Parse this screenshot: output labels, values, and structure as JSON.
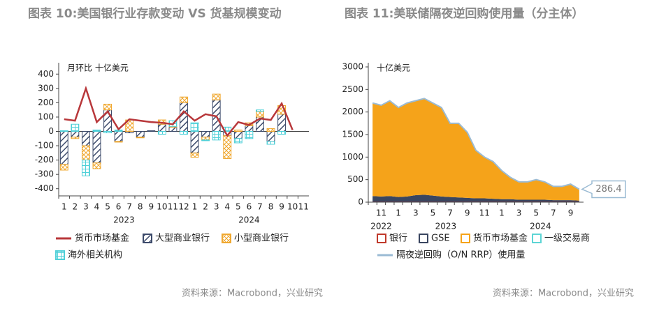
{
  "chart_data": [
    {
      "type": "bar",
      "title": "图表 10:美国银行业存款变动 VS 货基规模变动",
      "unit_label": "月环比 十亿美元",
      "categories": [
        "1",
        "2",
        "3",
        "4",
        "5",
        "6",
        "7",
        "8",
        "9",
        "10",
        "11",
        "12",
        "1",
        "2",
        "3",
        "4",
        "5",
        "6",
        "7",
        "8",
        "9",
        "10",
        "11"
      ],
      "groups": [
        {
          "label": "2023",
          "span": 12
        },
        {
          "label": "2024",
          "span": 11
        }
      ],
      "series": [
        {
          "name": "货币市场基金",
          "kind": "line",
          "color": "#b8373a",
          "values": [
            85,
            75,
            300,
            65,
            140,
            15,
            85,
            75,
            65,
            60,
            50,
            140,
            75,
            120,
            105,
            -30,
            65,
            45,
            90,
            80,
            195,
            10,
            null
          ]
        },
        {
          "name": "大型商业银行",
          "kind": "bar",
          "color": "#3d4b6b",
          "values": [
            -230,
            -40,
            -100,
            -220,
            150,
            -70,
            -10,
            -40,
            5,
            50,
            30,
            200,
            -150,
            -40,
            220,
            -30,
            -50,
            40,
            100,
            -70,
            120,
            null,
            null
          ]
        },
        {
          "name": "小型商业银行",
          "kind": "bar",
          "color": "#f0a830",
          "values": [
            -40,
            -10,
            -100,
            -40,
            40,
            -5,
            80,
            -5,
            0,
            30,
            5,
            40,
            -30,
            -20,
            40,
            -160,
            10,
            20,
            40,
            20,
            60,
            null,
            null
          ]
        },
        {
          "name": "海外相关机构",
          "kind": "bar",
          "color": "#4fd0d8",
          "values": [
            5,
            50,
            -110,
            10,
            -10,
            10,
            0,
            0,
            0,
            -20,
            40,
            -20,
            60,
            -5,
            -60,
            30,
            -30,
            -50,
            10,
            -20,
            -20,
            null,
            null
          ]
        }
      ],
      "ylim": [
        -450,
        450
      ],
      "yticks": [
        -400,
        -300,
        -200,
        -100,
        0,
        100,
        200,
        300,
        400
      ],
      "source": "资料来源：Macrobond，兴业研究"
    },
    {
      "type": "area",
      "title": "图表 11:美联储隔夜逆回购使用量（分主体）",
      "unit_label": "十亿美元",
      "categories": [
        null,
        "11",
        null,
        "1",
        null,
        "3",
        null,
        "5",
        null,
        "7",
        null,
        "9",
        null,
        "11",
        null,
        "1",
        null,
        "3",
        null,
        "5",
        null,
        "7",
        null,
        "9",
        null
      ],
      "groups": [
        {
          "label": "2022",
          "span": 3
        },
        {
          "label": "2023",
          "span": 12
        },
        {
          "label": "2024",
          "span": 10
        }
      ],
      "series": [
        {
          "name": "银行",
          "kind": "area",
          "color": "#c0392b",
          "values": [
            5,
            5,
            5,
            5,
            5,
            5,
            5,
            5,
            5,
            5,
            5,
            5,
            5,
            5,
            5,
            5,
            5,
            5,
            5,
            5,
            5,
            5,
            5,
            5,
            5
          ]
        },
        {
          "name": "GSE",
          "kind": "area",
          "color": "#3a4660",
          "values": [
            130,
            120,
            130,
            110,
            120,
            150,
            160,
            140,
            120,
            110,
            100,
            90,
            80,
            80,
            70,
            60,
            60,
            50,
            50,
            50,
            50,
            40,
            40,
            40,
            30
          ]
        },
        {
          "name": "货币市场基金",
          "kind": "area",
          "color": "#f5a31a",
          "values": [
            2055,
            2015,
            2105,
            1975,
            2065,
            2085,
            2125,
            2045,
            1965,
            1625,
            1635,
            1445,
            1055,
            905,
            815,
            625,
            475,
            385,
            385,
            435,
            385,
            295,
            295,
            345,
            241
          ]
        },
        {
          "name": "一级交易商",
          "kind": "area",
          "color": "#5dd5d5",
          "values": [
            10,
            10,
            10,
            10,
            10,
            10,
            10,
            10,
            10,
            10,
            10,
            10,
            10,
            10,
            10,
            10,
            10,
            10,
            10,
            10,
            10,
            10,
            10,
            10,
            10
          ]
        },
        {
          "name": "隔夜逆回购（O/N RRP）使用量",
          "kind": "line",
          "color": "#9bbbd4",
          "values": [
            2200,
            2150,
            2250,
            2100,
            2200,
            2250,
            2300,
            2200,
            2100,
            1750,
            1750,
            1550,
            1150,
            1000,
            900,
            700,
            550,
            450,
            450,
            500,
            450,
            350,
            350,
            400,
            286.4
          ]
        }
      ],
      "ylim": [
        0,
        3000
      ],
      "yticks": [
        0,
        500,
        1000,
        1500,
        2000,
        2500,
        3000
      ],
      "source": "资料来源：Macrobond，兴业研究"
    }
  ]
}
